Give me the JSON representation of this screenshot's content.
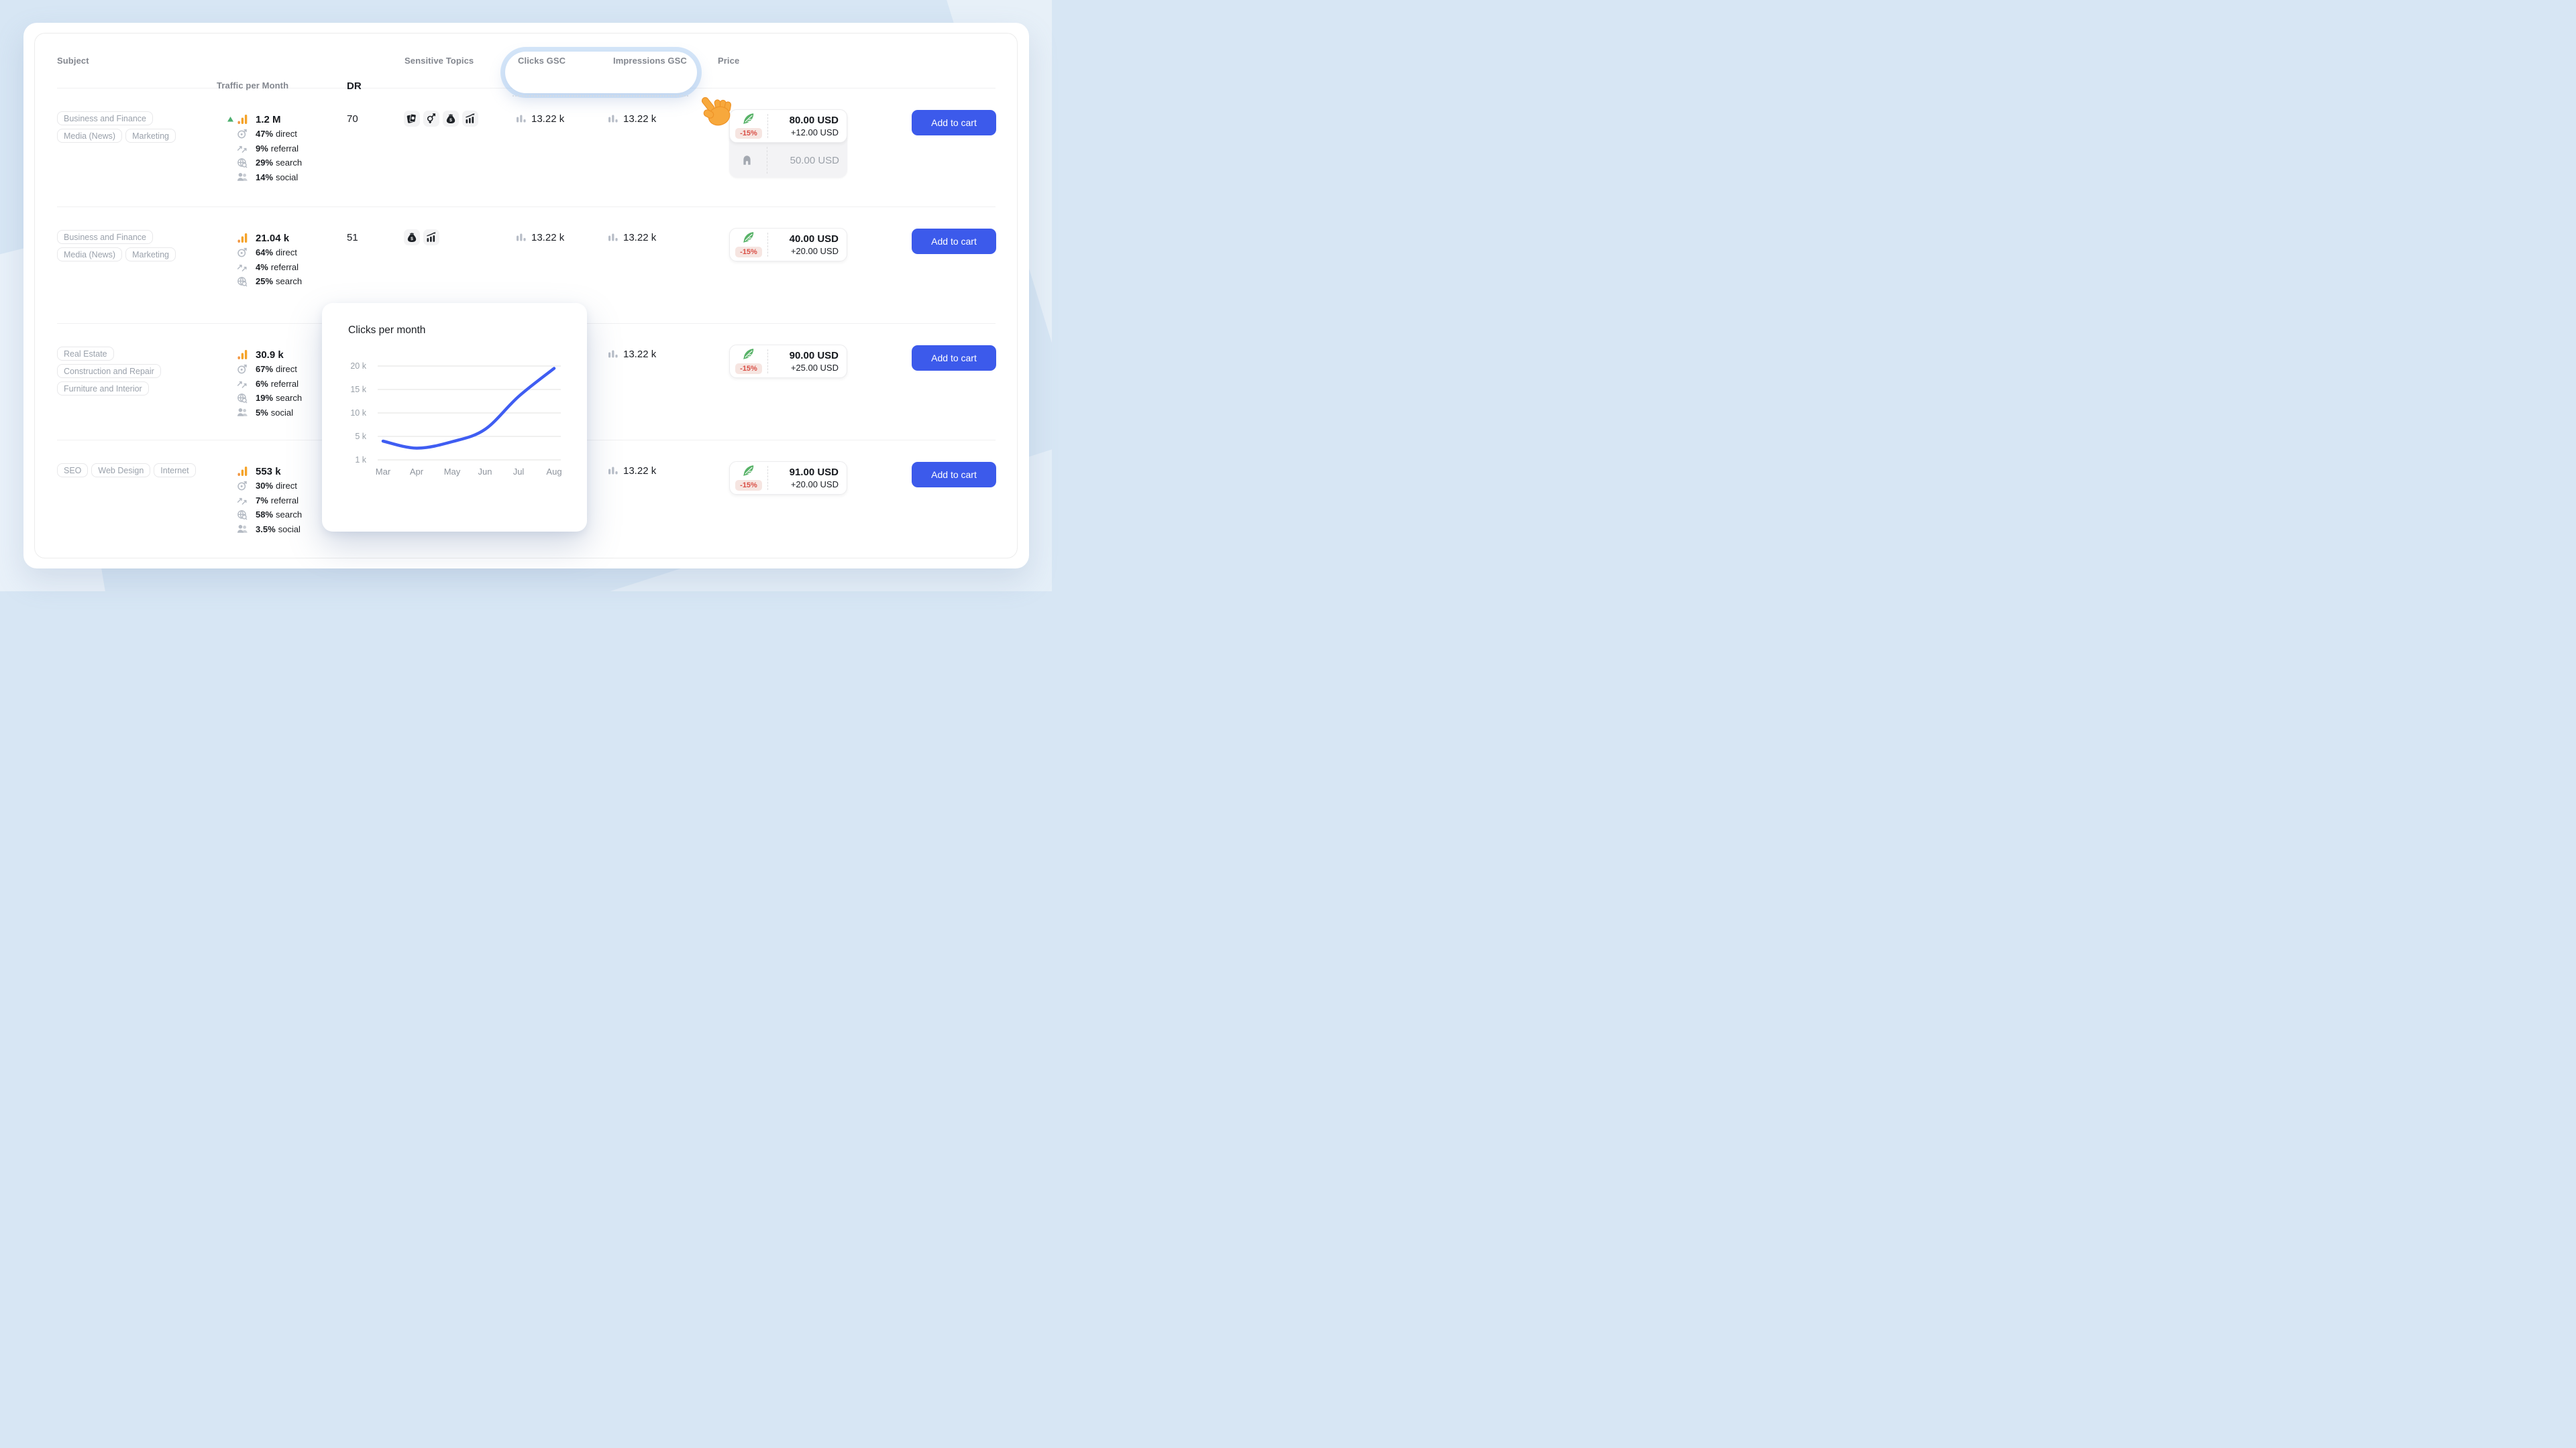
{
  "colors": {
    "background": "#d7e6f4",
    "accent_blue": "#3c5aeb",
    "chart_line": "#3f5df2",
    "traffic_orange": "#f5a329",
    "trend_green": "#4caf6e",
    "feather_green": "#57b267",
    "discount_red": "#d94f46",
    "discount_bg": "#f6e5e1",
    "hand_orange": "#f7a83c"
  },
  "header": {
    "subject": "Subject",
    "traffic": "Traffic per Month",
    "dr": "DR",
    "sensitive": "Sensitive Topics",
    "clicks": "Clicks GSC",
    "impressions": "Impressions GSC",
    "price": "Price"
  },
  "rows": [
    {
      "tags": [
        "Business and Finance",
        "Media (News)",
        "Marketing"
      ],
      "traffic": {
        "value": "1.2 M",
        "trend_up": true,
        "sources": [
          {
            "pct": "47%",
            "label": "direct",
            "icon": "direct"
          },
          {
            "pct": "9%",
            "label": "referral",
            "icon": "referral"
          },
          {
            "pct": "29%",
            "label": "search",
            "icon": "search"
          },
          {
            "pct": "14%",
            "label": "social",
            "icon": "social"
          }
        ]
      },
      "dr": "70",
      "sensitive_topics": [
        "playing-cards",
        "gender",
        "money-bag",
        "chart-up"
      ],
      "clicks": "13.22 k",
      "impressions": "13.22 k",
      "price": {
        "discount": "-15%",
        "main": "80.00 USD",
        "extra": "+12.00 USD",
        "secondary": "50.00 USD"
      },
      "cart_label": "Add to cart"
    },
    {
      "tags": [
        "Business and Finance",
        "Media (News)",
        "Marketing"
      ],
      "traffic": {
        "value": "21.04 k",
        "trend_up": false,
        "sources": [
          {
            "pct": "64%",
            "label": "direct",
            "icon": "direct"
          },
          {
            "pct": "4%",
            "label": "referral",
            "icon": "referral"
          },
          {
            "pct": "25%",
            "label": "search",
            "icon": "search"
          }
        ]
      },
      "dr": "51",
      "sensitive_topics": [
        "money-bag",
        "chart-up"
      ],
      "clicks": "13.22 k",
      "impressions": "13.22 k",
      "price": {
        "discount": "-15%",
        "main": "40.00 USD",
        "extra": "+20.00 USD",
        "secondary": null
      },
      "cart_label": "Add to cart"
    },
    {
      "tags": [
        "Real Estate",
        "Construction and Repair",
        "Furniture and Interior"
      ],
      "traffic": {
        "value": "30.9 k",
        "trend_up": false,
        "sources": [
          {
            "pct": "67%",
            "label": "direct",
            "icon": "direct"
          },
          {
            "pct": "6%",
            "label": "referral",
            "icon": "referral"
          },
          {
            "pct": "19%",
            "label": "search",
            "icon": "search"
          },
          {
            "pct": "5%",
            "label": "social",
            "icon": "social"
          }
        ]
      },
      "dr": null,
      "sensitive_topics": [],
      "clicks": null,
      "impressions": "13.22 k",
      "price": {
        "discount": "-15%",
        "main": "90.00 USD",
        "extra": "+25.00 USD",
        "secondary": null
      },
      "cart_label": "Add to cart"
    },
    {
      "tags": [
        "SEO",
        "Web Design",
        "Internet"
      ],
      "traffic": {
        "value": "553 k",
        "trend_up": false,
        "sources": [
          {
            "pct": "30%",
            "label": "direct",
            "icon": "direct"
          },
          {
            "pct": "7%",
            "label": "referral",
            "icon": "referral"
          },
          {
            "pct": "58%",
            "label": "search",
            "icon": "search"
          },
          {
            "pct": "3.5%",
            "label": "social",
            "icon": "social"
          }
        ]
      },
      "dr": null,
      "sensitive_topics": [],
      "clicks": null,
      "impressions": "13.22 k",
      "price": {
        "discount": "-15%",
        "main": "91.00 USD",
        "extra": "+20.00 USD",
        "secondary": null
      },
      "cart_label": "Add to cart"
    }
  ],
  "chart_data": {
    "type": "line",
    "title": "Clicks per month",
    "x": [
      "Mar",
      "Apr",
      "May",
      "Jun",
      "Jul",
      "Aug"
    ],
    "values": [
      4.2,
      3.0,
      4.1,
      6.5,
      13.5,
      19.5
    ],
    "unit": "k",
    "yticks": [
      20,
      15,
      10,
      5,
      1
    ],
    "ytick_labels": [
      "20 k",
      "15 k",
      "10 k",
      "5 k",
      "1 k"
    ],
    "xlabel": "",
    "ylabel": "",
    "grid": true,
    "legend": false,
    "line_color": "#3f5df2"
  }
}
